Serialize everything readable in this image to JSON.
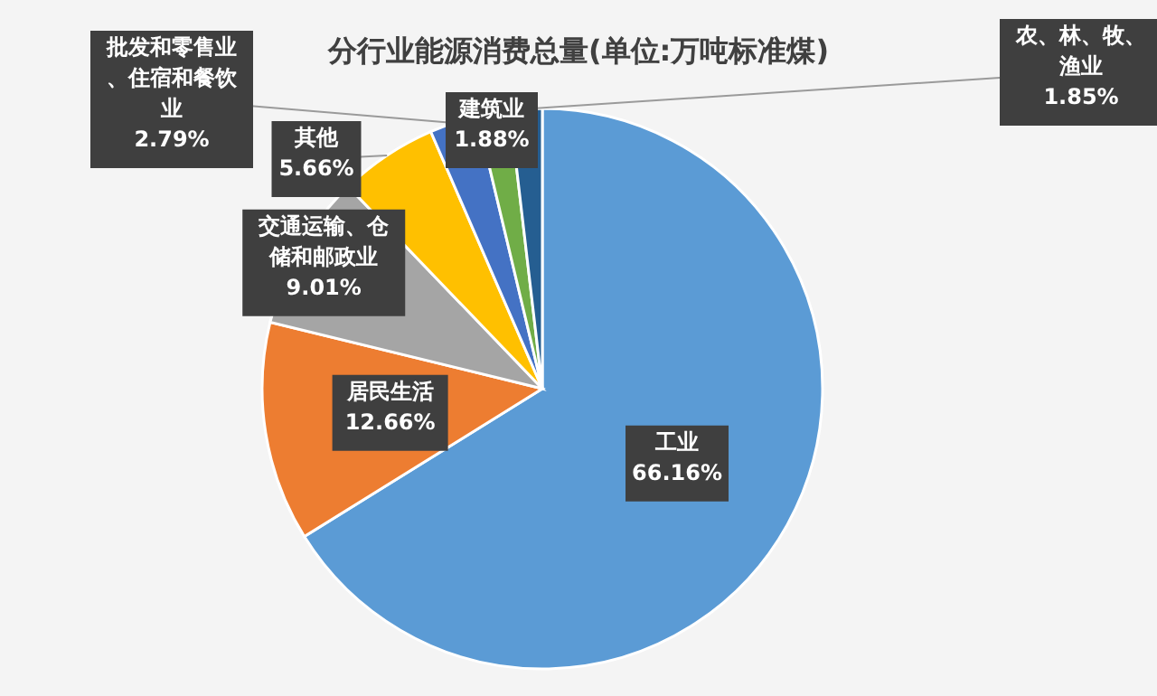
{
  "chart_data": {
    "type": "pie",
    "title": "分行业能源消费总量(单位:万吨标准煤)",
    "categories": [
      "工业",
      "居民生活",
      "交通运输、仓储和邮政业",
      "其他",
      "批发和零售业、住宿和餐饮业",
      "建筑业",
      "农、林、牧、渔业"
    ],
    "values": [
      66.16,
      12.66,
      9.01,
      5.66,
      2.79,
      1.88,
      1.85
    ],
    "value_labels": [
      "66.16%",
      "12.66%",
      "9.01%",
      "5.66%",
      "2.79%",
      "1.88%",
      "1.85%"
    ],
    "colors": [
      "#5b9bd5",
      "#ed7d31",
      "#a5a5a5",
      "#ffc000",
      "#4472c4",
      "#70ad47",
      "#255e91"
    ],
    "legend": false
  }
}
